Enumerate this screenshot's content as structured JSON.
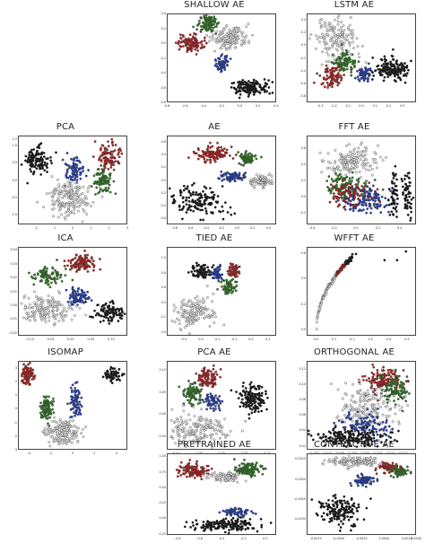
{
  "colors": {
    "black": "#111111",
    "red": "#b52020",
    "green": "#2f7d22",
    "blue": "#2340b8",
    "white": "#e8e8e8",
    "edge": "#333333"
  },
  "chart_data": [
    {
      "type": "scatter",
      "title": "SHALLOW AE",
      "xlim": [
        -0.8,
        0.4
      ],
      "ylim": [
        -0.8,
        0.4
      ],
      "xticks": [
        "-0.8",
        "-0.6",
        "-0.4",
        "-0.2",
        "0.0",
        "0.2",
        "0.4"
      ],
      "yticks": [
        "0.4",
        "0.2",
        "0.0",
        "-0.2",
        "-0.4",
        "-0.6",
        "-0.8"
      ],
      "clusters": [
        {
          "color": "red",
          "cx": -0.55,
          "cy": 0.0,
          "sx": 0.07,
          "sy": 0.06,
          "n": 110
        },
        {
          "color": "green",
          "cx": -0.35,
          "cy": 0.28,
          "sx": 0.06,
          "sy": 0.06,
          "n": 110
        },
        {
          "color": "white",
          "cx": -0.1,
          "cy": 0.08,
          "sx": 0.1,
          "sy": 0.08,
          "n": 150
        },
        {
          "color": "blue",
          "cx": -0.2,
          "cy": -0.28,
          "sx": 0.04,
          "sy": 0.05,
          "n": 60
        },
        {
          "color": "black",
          "cx": 0.12,
          "cy": -0.6,
          "sx": 0.1,
          "sy": 0.05,
          "n": 150
        }
      ]
    },
    {
      "type": "scatter",
      "title": "LSTM AE",
      "xlim": [
        -0.4,
        0.4
      ],
      "ylim": [
        -0.9,
        0.5
      ],
      "xticks": [
        "-0.3",
        "-0.2",
        "-0.1",
        "0.0",
        "0.1",
        "0.2",
        "0.3"
      ],
      "yticks": [
        "0.4",
        "0.2",
        "0.0",
        "-0.2",
        "-0.4",
        "-0.6",
        "-0.8"
      ],
      "clusters": [
        {
          "color": "white",
          "cx": -0.2,
          "cy": 0.1,
          "sx": 0.08,
          "sy": 0.18,
          "n": 170
        },
        {
          "color": "green",
          "cx": -0.13,
          "cy": -0.28,
          "sx": 0.04,
          "sy": 0.08,
          "n": 90
        },
        {
          "color": "red",
          "cx": -0.22,
          "cy": -0.5,
          "sx": 0.04,
          "sy": 0.08,
          "n": 80
        },
        {
          "color": "blue",
          "cx": 0.02,
          "cy": -0.45,
          "sx": 0.03,
          "sy": 0.06,
          "n": 60
        },
        {
          "color": "black",
          "cx": 0.23,
          "cy": -0.38,
          "sx": 0.07,
          "sy": 0.09,
          "n": 160
        }
      ]
    },
    {
      "type": "scatter",
      "title": "PCA",
      "xlim": [
        -3,
        3
      ],
      "ylim": [
        -1.3,
        1.3
      ],
      "xticks": [
        "-2",
        "-1",
        "0",
        "1",
        "2",
        "3"
      ],
      "yticks": [
        "1.2",
        "1.0",
        "0.5",
        "0.0",
        "-0.5",
        "-1.0"
      ],
      "clusters": [
        {
          "color": "black",
          "cx": -2.0,
          "cy": 0.6,
          "sx": 0.35,
          "sy": 0.2,
          "n": 120
        },
        {
          "color": "blue",
          "cx": 0.1,
          "cy": 0.3,
          "sx": 0.25,
          "sy": 0.18,
          "n": 80
        },
        {
          "color": "red",
          "cx": 2.0,
          "cy": 0.7,
          "sx": 0.3,
          "sy": 0.2,
          "n": 100
        },
        {
          "color": "green",
          "cx": 1.7,
          "cy": -0.05,
          "sx": 0.25,
          "sy": 0.18,
          "n": 90
        },
        {
          "color": "white",
          "cx": -0.2,
          "cy": -0.55,
          "sx": 0.6,
          "sy": 0.28,
          "n": 200
        }
      ]
    },
    {
      "type": "scatter",
      "title": "AE",
      "xlim": [
        -0.9,
        0.5
      ],
      "ylim": [
        -0.7,
        0.7
      ],
      "xticks": [
        "-0.8",
        "-0.6",
        "-0.4",
        "-0.2",
        "0.0",
        "0.2",
        "0.4"
      ],
      "yticks": [
        "0.6",
        "0.4",
        "0.2",
        "0.0",
        "-0.2",
        "-0.4",
        "-0.6"
      ],
      "clusters": [
        {
          "color": "red",
          "cx": -0.3,
          "cy": 0.42,
          "sx": 0.12,
          "sy": 0.06,
          "n": 110
        },
        {
          "color": "green",
          "cx": 0.12,
          "cy": 0.35,
          "sx": 0.06,
          "sy": 0.05,
          "n": 70
        },
        {
          "color": "blue",
          "cx": -0.05,
          "cy": 0.05,
          "sx": 0.1,
          "sy": 0.04,
          "n": 80
        },
        {
          "color": "white",
          "cx": 0.32,
          "cy": -0.02,
          "sx": 0.08,
          "sy": 0.05,
          "n": 90
        },
        {
          "color": "black",
          "cx": -0.5,
          "cy": -0.35,
          "sx": 0.2,
          "sy": 0.12,
          "n": 160
        }
      ]
    },
    {
      "type": "scatter",
      "title": "FFT AE",
      "xlim": [
        -0.45,
        0.55
      ],
      "ylim": [
        -0.35,
        0.75
      ],
      "xticks": [
        "-0.4",
        "-0.2",
        "0.0",
        "0.2",
        "0.4"
      ],
      "yticks": [
        "0.6",
        "0.4",
        "0.2",
        "0.0",
        "-0.2"
      ],
      "clusters": [
        {
          "color": "white",
          "cx": -0.05,
          "cy": 0.42,
          "sx": 0.12,
          "sy": 0.1,
          "n": 160
        },
        {
          "color": "green",
          "cx": -0.1,
          "cy": 0.12,
          "sx": 0.09,
          "sy": 0.08,
          "n": 110
        },
        {
          "color": "red",
          "cx": -0.02,
          "cy": 0.02,
          "sx": 0.1,
          "sy": 0.08,
          "n": 110
        },
        {
          "color": "blue",
          "cx": 0.08,
          "cy": -0.05,
          "sx": 0.1,
          "sy": 0.08,
          "n": 110
        },
        {
          "color": "black",
          "cx": 0.35,
          "cy": 0.0,
          "sx": 0.02,
          "sy": 0.14,
          "n": 60
        },
        {
          "color": "black",
          "cx": 0.48,
          "cy": 0.02,
          "sx": 0.02,
          "sy": 0.14,
          "n": 60
        }
      ]
    },
    {
      "type": "scatter",
      "title": "ICA",
      "xlim": [
        -0.13,
        0.14
      ],
      "ylim": [
        -0.022,
        0.042
      ],
      "xticks": [
        "-0.10",
        "-0.05",
        "0.00",
        "0.05",
        "0.10"
      ],
      "yticks": [
        "0.04",
        "0.03",
        "0.02",
        "0.01",
        "0.00",
        "-0.01",
        "-0.02"
      ],
      "clusters": [
        {
          "color": "red",
          "cx": 0.03,
          "cy": 0.031,
          "sx": 0.02,
          "sy": 0.003,
          "n": 110
        },
        {
          "color": "green",
          "cx": -0.06,
          "cy": 0.021,
          "sx": 0.02,
          "sy": 0.003,
          "n": 90
        },
        {
          "color": "blue",
          "cx": 0.02,
          "cy": 0.005,
          "sx": 0.015,
          "sy": 0.003,
          "n": 80
        },
        {
          "color": "white",
          "cx": -0.07,
          "cy": -0.003,
          "sx": 0.035,
          "sy": 0.005,
          "n": 180
        },
        {
          "color": "black",
          "cx": 0.1,
          "cy": -0.005,
          "sx": 0.02,
          "sy": 0.004,
          "n": 110
        }
      ]
    },
    {
      "type": "scatter",
      "title": "TIED AE",
      "xlim": [
        -0.5,
        0.15
      ],
      "ylim": [
        -0.05,
        1.15
      ],
      "xticks": [
        "-0.4",
        "-0.3",
        "-0.2",
        "-0.1",
        "0.0",
        "0.1"
      ],
      "yticks": [
        "1.0",
        "0.8",
        "0.6",
        "0.4",
        "0.2",
        "0.0"
      ],
      "clusters": [
        {
          "color": "black",
          "cx": -0.3,
          "cy": 0.82,
          "sx": 0.03,
          "sy": 0.05,
          "n": 90
        },
        {
          "color": "blue",
          "cx": -0.2,
          "cy": 0.8,
          "sx": 0.015,
          "sy": 0.06,
          "n": 50
        },
        {
          "color": "red",
          "cx": -0.1,
          "cy": 0.83,
          "sx": 0.02,
          "sy": 0.05,
          "n": 60
        },
        {
          "color": "green",
          "cx": -0.13,
          "cy": 0.6,
          "sx": 0.02,
          "sy": 0.06,
          "n": 60
        },
        {
          "color": "white",
          "cx": -0.35,
          "cy": 0.25,
          "sx": 0.06,
          "sy": 0.1,
          "n": 160
        }
      ]
    },
    {
      "type": "scatter",
      "title": "WFFT AE",
      "xlim": [
        -0.05,
        0.55
      ],
      "ylim": [
        -0.05,
        0.65
      ],
      "xticks": [
        "0.0",
        "0.1",
        "0.2",
        "0.3",
        "0.4",
        "0.5"
      ],
      "yticks": [
        "0.6",
        "0.4",
        "0.2",
        "0.0"
      ],
      "curve": true,
      "curve_colors": [
        "white",
        "red",
        "black"
      ],
      "outliers": [
        [
          0.22,
          0.6
        ],
        [
          0.38,
          0.55
        ],
        [
          0.45,
          0.55
        ],
        [
          0.5,
          0.62
        ]
      ]
    },
    {
      "type": "scatter",
      "title": "ISOMAP",
      "xlim": [
        -5,
        5
      ],
      "ylim": [
        -3,
        3.5
      ],
      "xticks": [
        "-4",
        "-2",
        "0",
        "2",
        "4"
      ],
      "yticks": [
        "3",
        "2",
        "1",
        "0",
        "-1",
        "-2",
        "-3"
      ],
      "clusters": [
        {
          "color": "red",
          "cx": -4.2,
          "cy": 2.5,
          "sx": 0.3,
          "sy": 0.4,
          "n": 90
        },
        {
          "color": "green",
          "cx": -2.5,
          "cy": 0.0,
          "sx": 0.3,
          "sy": 0.5,
          "n": 90
        },
        {
          "color": "blue",
          "cx": 0.3,
          "cy": 0.3,
          "sx": 0.25,
          "sy": 0.6,
          "n": 80
        },
        {
          "color": "white",
          "cx": -0.8,
          "cy": -1.8,
          "sx": 0.8,
          "sy": 0.45,
          "n": 180
        },
        {
          "color": "black",
          "cx": 3.8,
          "cy": 2.6,
          "sx": 0.45,
          "sy": 0.25,
          "n": 70
        }
      ]
    },
    {
      "type": "scatter",
      "title": "PCA AE",
      "xlim": [
        -0.12,
        0.12
      ],
      "ylim": [
        -0.08,
        0.12
      ],
      "xticks": [
        "-0.10",
        "-0.05",
        "0.00",
        "0.05",
        "0.10"
      ],
      "yticks": [
        "0.10",
        "0.05",
        "0.00",
        "-0.05"
      ],
      "clusters": [
        {
          "color": "red",
          "cx": -0.03,
          "cy": 0.08,
          "sx": 0.012,
          "sy": 0.012,
          "n": 90
        },
        {
          "color": "green",
          "cx": -0.065,
          "cy": 0.045,
          "sx": 0.012,
          "sy": 0.012,
          "n": 90
        },
        {
          "color": "blue",
          "cx": -0.02,
          "cy": 0.03,
          "sx": 0.01,
          "sy": 0.01,
          "n": 60
        },
        {
          "color": "black",
          "cx": 0.07,
          "cy": 0.035,
          "sx": 0.015,
          "sy": 0.015,
          "n": 150
        },
        {
          "color": "white",
          "cx": -0.05,
          "cy": -0.035,
          "sx": 0.035,
          "sy": 0.02,
          "n": 200
        }
      ]
    },
    {
      "type": "scatter",
      "title": "ORTHOGONAL AE",
      "xlim": [
        -0.018,
        0.025
      ],
      "ylim": [
        0.015,
        0.13
      ],
      "xticks": [
        "-0.015",
        "-0.010",
        "-0.005",
        "0.000",
        "0.005",
        "0.010",
        "0.015",
        "0.020"
      ],
      "yticks": [
        "0.12",
        "0.10",
        "0.08",
        "0.06",
        "0.04",
        "0.02"
      ],
      "clusters": [
        {
          "color": "red",
          "cx": 0.012,
          "cy": 0.105,
          "sx": 0.004,
          "sy": 0.008,
          "n": 140
        },
        {
          "color": "green",
          "cx": 0.017,
          "cy": 0.095,
          "sx": 0.003,
          "sy": 0.01,
          "n": 100
        },
        {
          "color": "white",
          "cx": 0.006,
          "cy": 0.07,
          "sx": 0.006,
          "sy": 0.015,
          "n": 180
        },
        {
          "color": "blue",
          "cx": 0.005,
          "cy": 0.045,
          "sx": 0.005,
          "sy": 0.008,
          "n": 110
        },
        {
          "color": "black",
          "cx": -0.002,
          "cy": 0.03,
          "sx": 0.008,
          "sy": 0.006,
          "n": 200
        }
      ]
    },
    {
      "type": "scatter",
      "title": "PRETRAINED AE",
      "xlim": [
        -0.9,
        0.1
      ],
      "ylim": [
        -0.27,
        1.05
      ],
      "xticks": [
        "-0.8",
        "-0.6",
        "-0.4",
        "-0.2",
        "0.0"
      ],
      "yticks": [
        "1.00",
        "0.75",
        "0.50",
        "0.25",
        "0.00",
        "-0.25"
      ],
      "clusters": [
        {
          "color": "red",
          "cx": -0.65,
          "cy": 0.78,
          "sx": 0.08,
          "sy": 0.06,
          "n": 110
        },
        {
          "color": "green",
          "cx": -0.15,
          "cy": 0.8,
          "sx": 0.07,
          "sy": 0.06,
          "n": 110
        },
        {
          "color": "white",
          "cx": -0.35,
          "cy": 0.68,
          "sx": 0.08,
          "sy": 0.04,
          "n": 100
        },
        {
          "color": "blue",
          "cx": -0.25,
          "cy": 0.1,
          "sx": 0.06,
          "sy": 0.03,
          "n": 70
        },
        {
          "color": "black",
          "cx": -0.35,
          "cy": -0.12,
          "sx": 0.15,
          "sy": 0.05,
          "n": 170
        }
      ]
    },
    {
      "type": "scatter",
      "title": "CONTRACTIVE AE",
      "xlim": [
        -0.0085,
        0.0035
      ],
      "ylim": [
        -0.007,
        0.0032
      ],
      "xticks": [
        "-0.0075",
        "-0.0050",
        "-0.0025",
        "0.0000",
        "0.0025",
        "0.0050"
      ],
      "yticks": [
        "0.0025",
        "0.0000",
        "-0.0025",
        "-0.0050"
      ],
      "clusters": [
        {
          "color": "white",
          "cx": -0.003,
          "cy": 0.0022,
          "sx": 0.0015,
          "sy": 0.0003,
          "n": 140
        },
        {
          "color": "red",
          "cx": 0.0005,
          "cy": 0.0015,
          "sx": 0.0006,
          "sy": 0.0003,
          "n": 70
        },
        {
          "color": "green",
          "cx": 0.0018,
          "cy": 0.001,
          "sx": 0.0005,
          "sy": 0.0003,
          "n": 60
        },
        {
          "color": "blue",
          "cx": -0.0022,
          "cy": -0.0002,
          "sx": 0.0006,
          "sy": 0.0004,
          "n": 70
        },
        {
          "color": "black",
          "cx": -0.005,
          "cy": -0.004,
          "sx": 0.0012,
          "sy": 0.0009,
          "n": 160
        }
      ]
    }
  ]
}
